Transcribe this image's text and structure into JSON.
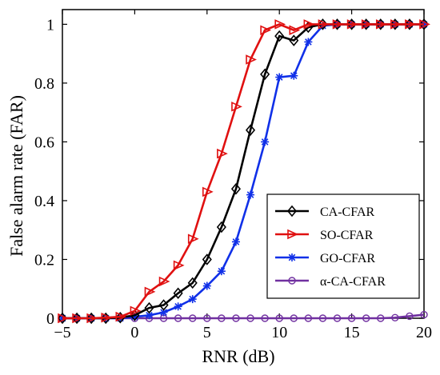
{
  "chart_data": {
    "type": "line",
    "title": "",
    "xlabel": "RNR (dB)",
    "ylabel": "False alarm rate (FAR)",
    "xlim": [
      -5,
      20
    ],
    "ylim": [
      0,
      1.05
    ],
    "xticks": [
      "-5",
      "0",
      "5",
      "10",
      "15",
      "20"
    ],
    "yticks": [
      "0",
      "0.2",
      "0.4",
      "0.6",
      "0.8",
      "1"
    ],
    "x": [
      -5,
      -4,
      -3,
      -2,
      -1,
      0,
      1,
      2,
      3,
      4,
      5,
      6,
      7,
      8,
      9,
      10,
      11,
      12,
      13,
      14,
      15,
      16,
      17,
      18,
      19,
      20
    ],
    "legend_position": "bottom-right",
    "grid": false,
    "series": [
      {
        "name": "CA-CFAR",
        "color": "#000000",
        "marker": "diamond",
        "values": [
          0,
          0,
          0,
          0,
          0.002,
          0.01,
          0.035,
          0.045,
          0.085,
          0.12,
          0.2,
          0.31,
          0.44,
          0.64,
          0.83,
          0.96,
          0.945,
          0.99,
          1,
          1,
          1,
          1,
          1,
          1,
          1,
          1
        ]
      },
      {
        "name": "SO-CFAR",
        "color": "#e01010",
        "marker": "triangle-right",
        "values": [
          0,
          0,
          0,
          0.002,
          0.005,
          0.025,
          0.09,
          0.125,
          0.18,
          0.27,
          0.43,
          0.56,
          0.72,
          0.88,
          0.98,
          1,
          0.98,
          1,
          1,
          1,
          1,
          1,
          1,
          1,
          1,
          1
        ]
      },
      {
        "name": "GO-CFAR",
        "color": "#1030e8",
        "marker": "asterisk",
        "values": [
          0,
          0,
          0,
          0,
          0,
          0.005,
          0.01,
          0.02,
          0.04,
          0.065,
          0.11,
          0.16,
          0.26,
          0.42,
          0.6,
          0.82,
          0.825,
          0.94,
          0.995,
          1,
          1,
          1,
          1,
          1,
          1,
          1
        ]
      },
      {
        "name": "α-CA-CFAR",
        "color": "#7030a0",
        "marker": "circle",
        "values": [
          0,
          0,
          0,
          0,
          0,
          0,
          0,
          0,
          0,
          0,
          0,
          0,
          0,
          0,
          0,
          0,
          0,
          0,
          0,
          0,
          0,
          0,
          0,
          0.002,
          0.007,
          0.012
        ]
      }
    ]
  }
}
